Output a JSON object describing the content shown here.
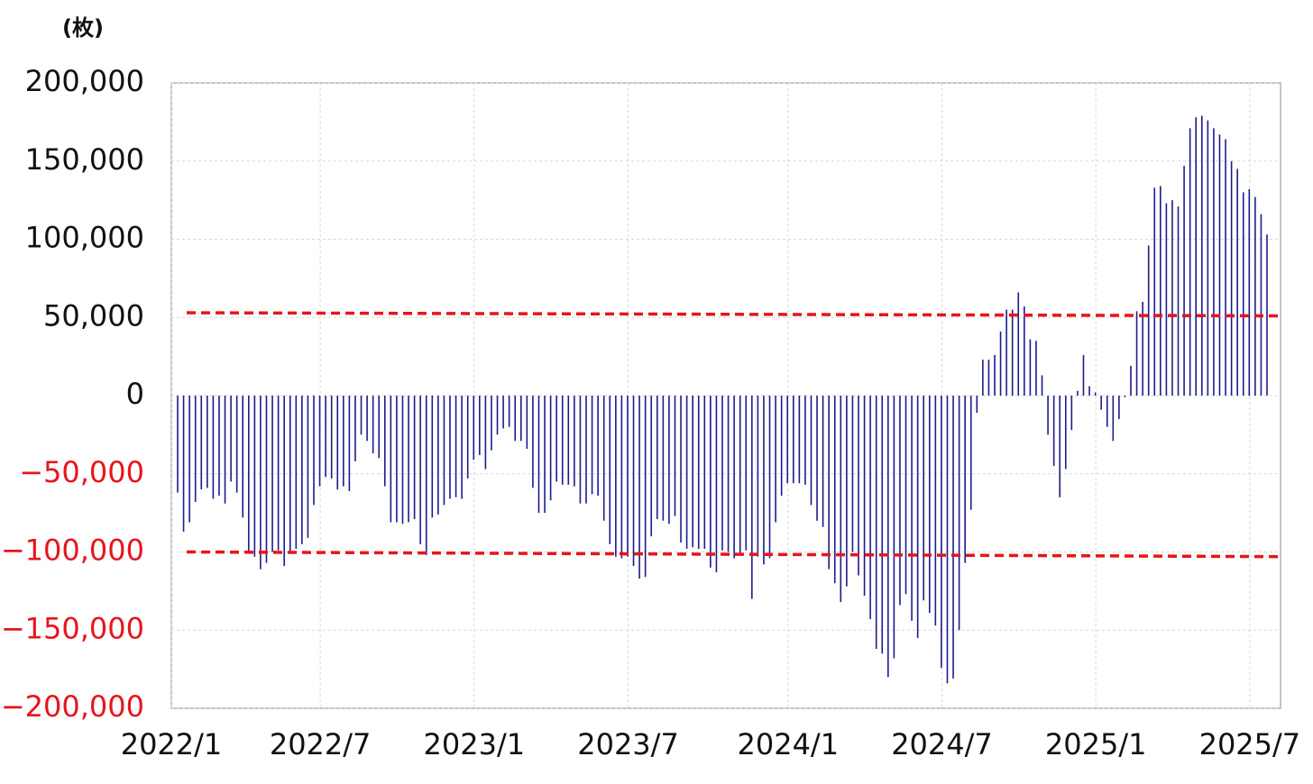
{
  "chart_data": {
    "type": "bar",
    "y_unit_label": "(枚)",
    "color": "#1c1c8e",
    "negative_label_color": "#e8141c",
    "grid": true,
    "ylim": [
      -200000,
      200000
    ],
    "yticks": [
      {
        "value": -200000,
        "label": "−200,000"
      },
      {
        "value": -150000,
        "label": "−150,000"
      },
      {
        "value": -100000,
        "label": "−100,000"
      },
      {
        "value": -50000,
        "label": "−50,000"
      },
      0,
      {
        "value": 50000,
        "label": "50,000"
      },
      {
        "value": 100000,
        "label": "100,000"
      },
      {
        "value": 150000,
        "label": "150,000"
      },
      {
        "value": 200000,
        "label": "200,000"
      }
    ],
    "threshold_lines": [
      {
        "start": 53000,
        "end": 51000,
        "color": "#e8141c"
      },
      {
        "start": -100000,
        "end": -103000,
        "color": "#e8141c"
      }
    ],
    "categories": [
      "2022/1",
      null,
      null,
      null,
      null,
      null,
      null,
      null,
      null,
      null,
      null,
      null,
      null,
      null,
      null,
      null,
      null,
      null,
      null,
      null,
      null,
      null,
      null,
      null,
      null,
      "2022/7",
      null,
      null,
      null,
      null,
      null,
      null,
      null,
      null,
      null,
      null,
      null,
      null,
      null,
      null,
      null,
      null,
      null,
      null,
      null,
      null,
      null,
      null,
      null,
      null,
      null,
      "2023/1",
      null,
      null,
      null,
      null,
      null,
      null,
      null,
      null,
      null,
      null,
      null,
      null,
      null,
      null,
      null,
      null,
      null,
      null,
      null,
      null,
      null,
      null,
      null,
      null,
      null,
      "2023/7",
      null,
      null,
      null,
      null,
      null,
      null,
      null,
      null,
      null,
      null,
      null,
      null,
      null,
      null,
      null,
      null,
      null,
      null,
      null,
      null,
      null,
      null,
      null,
      null,
      null,
      null,
      "2024/1",
      null,
      null,
      null,
      null,
      null,
      null,
      null,
      null,
      null,
      null,
      null,
      null,
      null,
      null,
      null,
      null,
      null,
      null,
      null,
      null,
      null,
      null,
      null,
      null,
      null,
      "2024/7",
      null,
      null,
      null,
      null,
      null,
      null,
      null,
      null,
      null,
      null,
      null,
      null,
      null,
      null,
      null,
      null,
      null,
      null,
      null,
      null,
      null,
      null,
      null,
      null,
      null,
      "2025/1",
      null,
      null,
      null,
      null,
      null,
      null,
      null,
      null,
      null,
      null,
      null,
      null,
      null,
      null,
      null,
      null,
      null,
      null,
      null,
      null,
      null,
      null,
      null,
      null,
      null,
      "2025/7",
      null,
      null
    ],
    "values": [
      -62000,
      -87000,
      -81000,
      -68000,
      -60000,
      -59000,
      -66000,
      -64000,
      -69000,
      -55000,
      -62000,
      -78000,
      -100000,
      -103000,
      -111000,
      -107000,
      -100000,
      -99000,
      -109000,
      -100000,
      -98000,
      -95000,
      -91000,
      -70000,
      -58000,
      -52000,
      -53000,
      -60000,
      -58000,
      -61000,
      -42000,
      -25000,
      -29000,
      -37000,
      -40000,
      -58000,
      -81000,
      -81000,
      -82000,
      -81000,
      -79000,
      -95000,
      -102000,
      -78000,
      -76000,
      -70000,
      -66000,
      -65000,
      -66000,
      -53000,
      -41000,
      -38000,
      -47000,
      -35000,
      -25000,
      -21000,
      -20000,
      -29000,
      -29000,
      -34000,
      -59000,
      -75000,
      -75000,
      -67000,
      -55000,
      -57000,
      -57000,
      -58000,
      -69000,
      -69000,
      -63000,
      -64000,
      -80000,
      -95000,
      -103000,
      -104000,
      -103000,
      -109000,
      -117000,
      -116000,
      -90000,
      -79000,
      -80000,
      -82000,
      -77000,
      -94000,
      -98000,
      -97000,
      -98000,
      -98000,
      -110000,
      -113000,
      -99000,
      -100000,
      -104000,
      -101000,
      -99000,
      -130000,
      -103000,
      -108000,
      -104000,
      -81000,
      -64000,
      -56000,
      -56000,
      -56000,
      -57000,
      -70000,
      -80000,
      -84000,
      -111000,
      -120000,
      -132000,
      -122000,
      -100000,
      -115000,
      -128000,
      -143000,
      -162000,
      -165000,
      -180000,
      -168000,
      -134000,
      -127000,
      -144000,
      -155000,
      -131000,
      -139000,
      -147000,
      -174000,
      -184000,
      -181000,
      -150000,
      -107000,
      -73000,
      -11000,
      23000,
      23000,
      26000,
      41000,
      55000,
      55000,
      66000,
      57000,
      36000,
      35000,
      13000,
      -25000,
      -45000,
      -65000,
      -47000,
      -22000,
      3000,
      26000,
      6000,
      2000,
      -9000,
      -20000,
      -29000,
      -15000,
      -1000,
      19000,
      54000,
      60000,
      96000,
      133000,
      134000,
      123000,
      125000,
      121000,
      147000,
      171000,
      178000,
      179000,
      176000,
      171000,
      167000,
      164000,
      150000,
      145000,
      130000,
      132000,
      127000,
      116000,
      103000
    ]
  }
}
